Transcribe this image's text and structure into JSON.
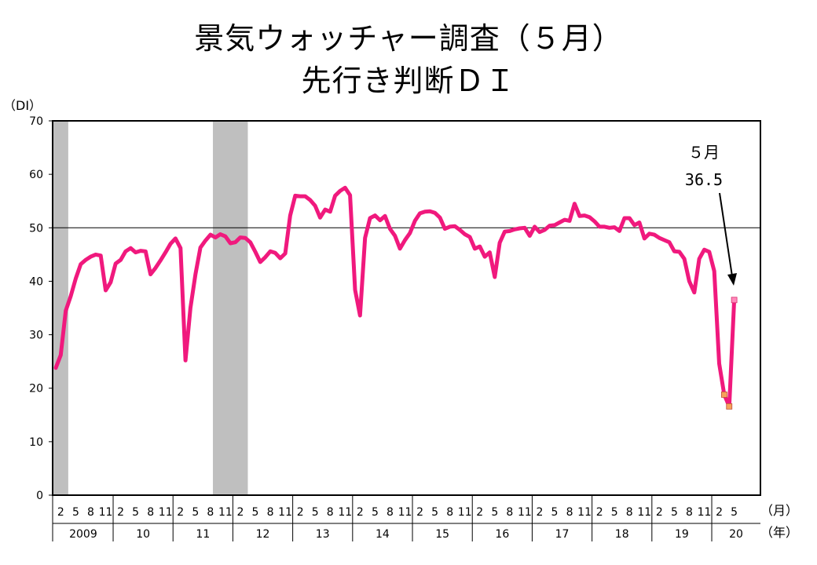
{
  "chart_data": {
    "type": "line",
    "title": "景気ウォッチャー調査（５月）",
    "subtitle": "先行き判断ＤＩ",
    "ylabel": "（DI）",
    "x_unit_month": "（月）",
    "x_unit_year": "（年）",
    "ylim": [
      0,
      70
    ],
    "yticks": [
      "0",
      "10",
      "20",
      "30",
      "40",
      "50",
      "60",
      "70"
    ],
    "reference_line": 50,
    "month_ticks": [
      "2",
      "5",
      "8",
      "11"
    ],
    "last_year_month_ticks": [
      "2",
      "5"
    ],
    "years": [
      "2009",
      "10",
      "11",
      "12",
      "13",
      "14",
      "15",
      "16",
      "17",
      "18",
      "19",
      "20"
    ],
    "shaded_periods": [
      {
        "start_index": 0,
        "end_index": 2
      },
      {
        "start_index": 32,
        "end_index": 38
      }
    ],
    "series": [
      {
        "color": "#f0197d",
        "start": "2009-01",
        "values": [
          23.8,
          26.2,
          34.5,
          37.2,
          40.5,
          43.2,
          44.0,
          44.6,
          45.0,
          44.8,
          38.3,
          39.8,
          43.3,
          44.0,
          45.6,
          46.2,
          45.4,
          45.7,
          45.6,
          41.3,
          42.5,
          43.9,
          45.4,
          47.0,
          48.0,
          46.2,
          25.2,
          35.0,
          41.3,
          46.3,
          47.6,
          48.7,
          48.2,
          48.8,
          48.4,
          47.1,
          47.3,
          48.2,
          48.1,
          47.3,
          45.5,
          43.6,
          44.5,
          45.6,
          45.3,
          44.3,
          45.2,
          52.3,
          56.0,
          55.9,
          55.9,
          55.2,
          54.1,
          51.9,
          53.4,
          53.0,
          56.0,
          56.9,
          57.5,
          56.1,
          38.4,
          33.6,
          48.1,
          51.8,
          52.3,
          51.4,
          52.2,
          49.8,
          48.5,
          46.1,
          47.7,
          49.0,
          51.3,
          52.7,
          53.0,
          53.1,
          52.8,
          51.9,
          49.8,
          50.2,
          50.3,
          49.6,
          48.8,
          48.3,
          46.1,
          46.5,
          44.6,
          45.4,
          40.8,
          47.2,
          49.3,
          49.4,
          49.7,
          49.9,
          50.0,
          48.5,
          50.2,
          49.2,
          49.6,
          50.4,
          50.5,
          51.0,
          51.5,
          51.3,
          54.5,
          52.2,
          52.3,
          52.0,
          51.2,
          50.2,
          50.2,
          50.0,
          50.1,
          49.4,
          51.8,
          51.8,
          50.5,
          51.0,
          48.0,
          48.9,
          48.7,
          48.1,
          47.7,
          47.3,
          45.6,
          45.5,
          44.2,
          40.0,
          37.9,
          44.2,
          45.9,
          45.5,
          41.9,
          24.6,
          18.8,
          16.6,
          36.5
        ],
        "highlight_indices": [
          134,
          135,
          136
        ]
      }
    ],
    "annotation": {
      "label": "５月",
      "value": "36.5"
    }
  }
}
